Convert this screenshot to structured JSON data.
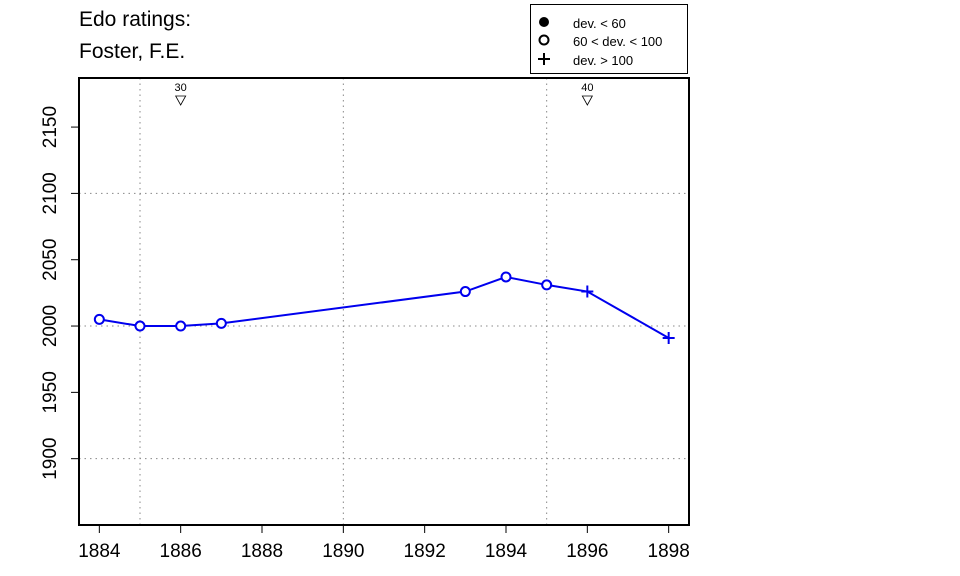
{
  "title_lines": [
    "Edo ratings:",
    "Foster, F.E."
  ],
  "legend": [
    {
      "label": "dev. < 60",
      "symbol": "filled-circle-icon"
    },
    {
      "label": "60 < dev. < 100",
      "symbol": "open-circle-icon"
    },
    {
      "label": "dev. > 100",
      "symbol": "plus-icon"
    }
  ],
  "colors": {
    "series": "#0000ee",
    "axis": "#000000",
    "grid": "#888888"
  },
  "chart_data": {
    "type": "line",
    "title": "Edo ratings: Foster, F.E.",
    "xlabel": "",
    "ylabel": "",
    "xlim": [
      1883.5,
      1898.5
    ],
    "ylim": [
      1850,
      2187
    ],
    "x_ticks": [
      1884,
      1886,
      1888,
      1890,
      1892,
      1894,
      1896,
      1898
    ],
    "y_ticks": [
      1900,
      1950,
      2000,
      2050,
      2100,
      2150
    ],
    "grid": {
      "x": [
        1885,
        1890,
        1895
      ],
      "y": [
        1900,
        2000,
        2100
      ],
      "style": "dotted"
    },
    "series": [
      {
        "points": [
          {
            "x": 1884,
            "y": 2005,
            "marker": "open-circle"
          },
          {
            "x": 1885,
            "y": 2000,
            "marker": "open-circle"
          },
          {
            "x": 1886,
            "y": 2000,
            "marker": "open-circle"
          },
          {
            "x": 1887,
            "y": 2002,
            "marker": "open-circle"
          },
          {
            "x": 1893,
            "y": 2026,
            "marker": "open-circle"
          },
          {
            "x": 1894,
            "y": 2037,
            "marker": "open-circle"
          },
          {
            "x": 1895,
            "y": 2031,
            "marker": "open-circle"
          },
          {
            "x": 1896,
            "y": 2026,
            "marker": "plus"
          },
          {
            "x": 1898,
            "y": 1991,
            "marker": "plus"
          }
        ]
      }
    ],
    "annotations": [
      {
        "x": 1886,
        "label": "30",
        "marker": "down-triangle"
      },
      {
        "x": 1896,
        "label": "40",
        "marker": "down-triangle"
      }
    ]
  }
}
